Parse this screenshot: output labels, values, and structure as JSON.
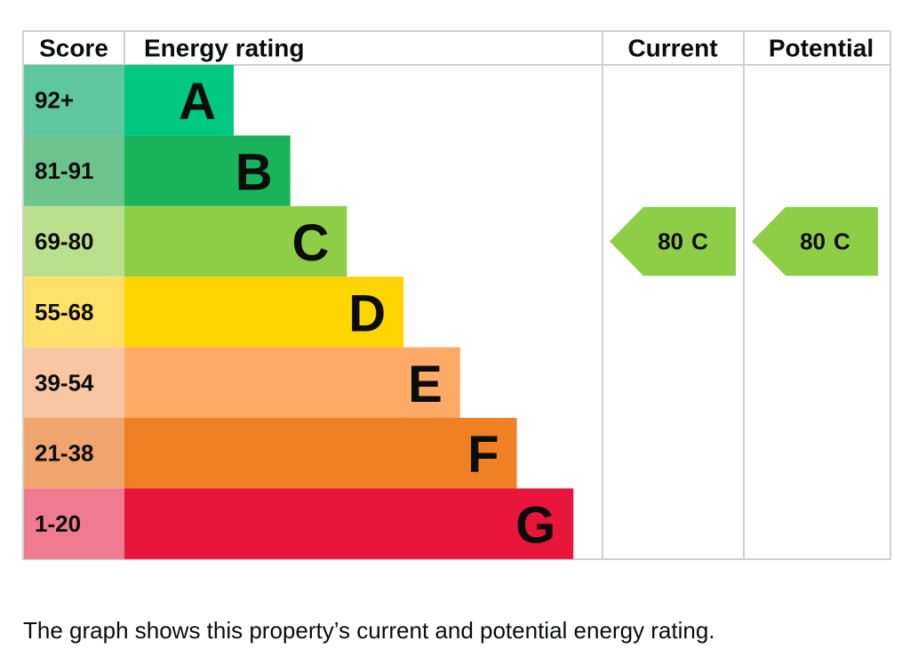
{
  "headers": [
    "Score",
    "Energy rating",
    "Current",
    "Potential"
  ],
  "bands": [
    {
      "score": "92+",
      "letter": "A",
      "color": "#00c781",
      "score_color": "#5ec7a2"
    },
    {
      "score": "81-91",
      "letter": "B",
      "color": "#19b459",
      "score_color": "#6cc38c"
    },
    {
      "score": "69-80",
      "letter": "C",
      "color": "#8dce46",
      "score_color": "#bbe08d"
    },
    {
      "score": "55-68",
      "letter": "D",
      "color": "#ffd500",
      "score_color": "#ffe16a"
    },
    {
      "score": "39-54",
      "letter": "E",
      "color": "#fcaa65",
      "score_color": "#f8c6a0"
    },
    {
      "score": "21-38",
      "letter": "F",
      "color": "#ef8023",
      "score_color": "#f1a56e"
    },
    {
      "score": "1-20",
      "letter": "G",
      "color": "#e9153b",
      "score_color": "#f07b91"
    }
  ],
  "current": {
    "score": 80,
    "letter": "C"
  },
  "potential": {
    "score": 80,
    "letter": "C"
  },
  "footer": "The graph shows this property’s current and potential energy rating."
}
